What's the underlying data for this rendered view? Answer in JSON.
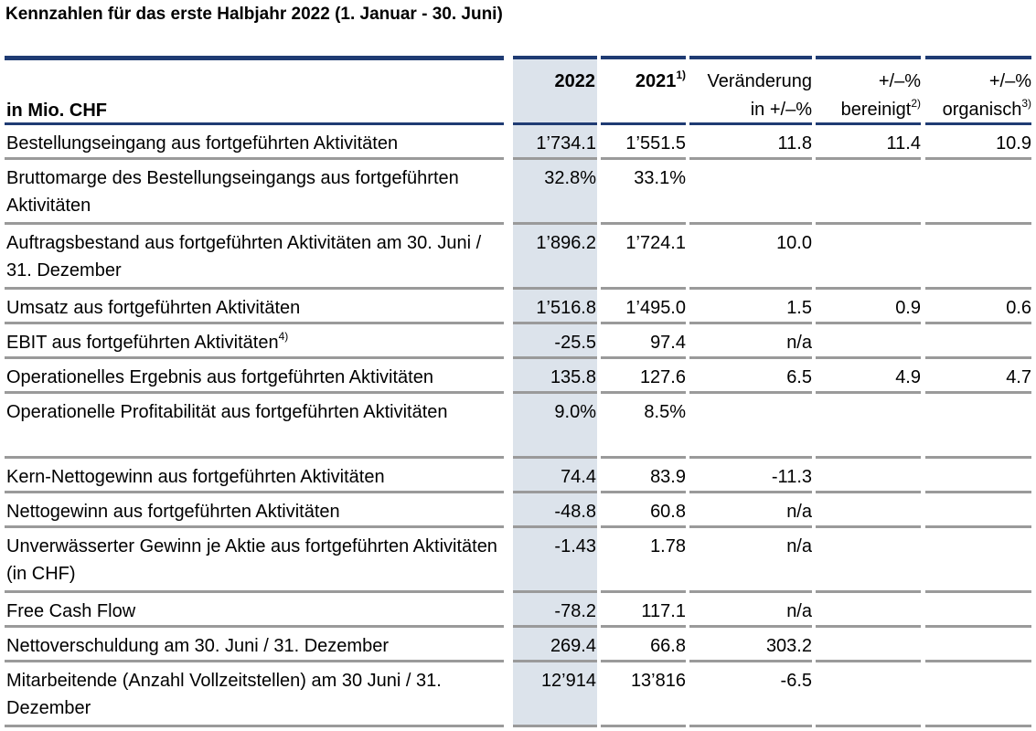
{
  "title": "Kennzahlen für das erste Halbjahr 2022 (1. Januar - 30. Juni)",
  "header": {
    "unit": "in Mio. CHF",
    "col_2022": "2022",
    "col_2021": "2021",
    "col_2021_note": "1)",
    "col_change_line1": "Veränderung",
    "col_change_line2": "in +/–%",
    "col_adj_line1": "+/–%",
    "col_adj_line2": "bereinigt",
    "col_adj_note": "2)",
    "col_org_line1": "+/–%",
    "col_org_line2": "organisch",
    "col_org_note": "3)"
  },
  "rows": [
    {
      "label": "Bestellungseingang aus fortgeführten Aktivitäten",
      "note": "",
      "v2022": "1’734.1",
      "v2021": "1’551.5",
      "change": "11.8",
      "adjusted": "11.4",
      "organic": "10.9"
    },
    {
      "label": "Bruttomarge des Bestellungseingangs aus fortgeführten Aktivitäten",
      "note": "",
      "v2022": "32.8%",
      "v2021": "33.1%",
      "change": "",
      "adjusted": "",
      "organic": ""
    },
    {
      "label": "Auftragsbestand aus fortgeführten Aktivitäten am 30. Juni / 31. Dezember",
      "note": "",
      "v2022": "1’896.2",
      "v2021": "1’724.1",
      "change": "10.0",
      "adjusted": "",
      "organic": ""
    },
    {
      "label": "Umsatz aus fortgeführten Aktivitäten",
      "note": "",
      "v2022": "1’516.8",
      "v2021": "1’495.0",
      "change": "1.5",
      "adjusted": "0.9",
      "organic": "0.6"
    },
    {
      "label": "EBIT aus fortgeführten Aktivitäten",
      "note": "4)",
      "v2022": "-25.5",
      "v2021": "97.4",
      "change": "n/a",
      "adjusted": "",
      "organic": ""
    },
    {
      "label": "Operationelles Ergebnis aus fortgeführten Aktivitäten",
      "note": "",
      "v2022": "135.8",
      "v2021": "127.6",
      "change": "6.5",
      "adjusted": "4.9",
      "organic": "4.7"
    },
    {
      "label": "Operationelle Profitabilität aus fortgeführten Aktivitäten",
      "note": "",
      "v2022": "9.0%",
      "v2021": "8.5%",
      "change": "",
      "adjusted": "",
      "organic": ""
    },
    {
      "label": "Kern-Nettogewinn aus fortgeführten Aktivitäten",
      "note": "",
      "v2022": "74.4",
      "v2021": "83.9",
      "change": "-11.3",
      "adjusted": "",
      "organic": ""
    },
    {
      "label": "Nettogewinn aus fortgeführten Aktivitäten",
      "note": "",
      "v2022": "-48.8",
      "v2021": "60.8",
      "change": "n/a",
      "adjusted": "",
      "organic": ""
    },
    {
      "label": "Unverwässerter Gewinn je Aktie aus fortgeführten Aktivitäten (in CHF)",
      "note": "",
      "v2022": "-1.43",
      "v2021": "1.78",
      "change": "n/a",
      "adjusted": "",
      "organic": ""
    },
    {
      "label": "Free Cash Flow",
      "note": "",
      "v2022": "-78.2",
      "v2021": "117.1",
      "change": "n/a",
      "adjusted": "",
      "organic": ""
    },
    {
      "label": "Nettoverschuldung am 30. Juni / 31. Dezember",
      "note": "",
      "v2022": "269.4",
      "v2021": "66.8",
      "change": "303.2",
      "adjusted": "",
      "organic": ""
    },
    {
      "label": "Mitarbeitende (Anzahl Vollzeitstellen) am 30 Juni / 31. Dezember",
      "note": "",
      "v2022": "12’914",
      "v2021": "13’816",
      "change": "-6.5",
      "adjusted": "",
      "organic": ""
    }
  ]
}
